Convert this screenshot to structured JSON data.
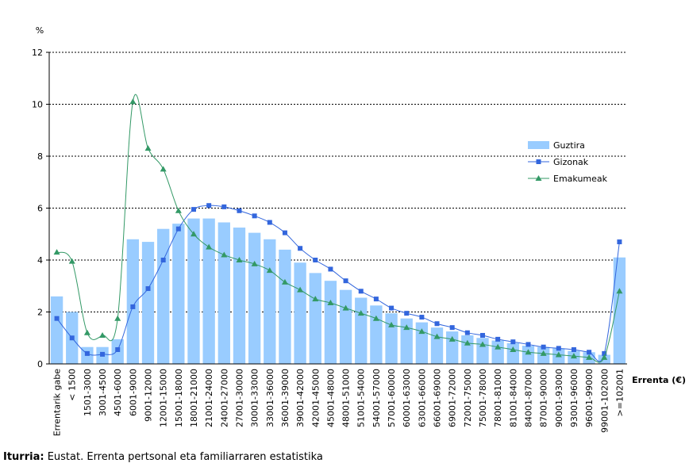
{
  "chart_data": {
    "type": "bar-line",
    "y_label": "%",
    "x_label": "Errenta (€)",
    "source_label": "Iturria:",
    "source": "Eustat. Errenta pertsonal eta familiarraren estatistika",
    "categories": [
      "Errentarik gabe",
      "< 1500",
      "1501-3000",
      "3001-4500",
      "4501-6000",
      "6001-9000",
      "9001-12000",
      "12001-15000",
      "15001-18000",
      "18001-21000",
      "21001-24000",
      "24001-27000",
      "27001-30000",
      "30001-33000",
      "33001-36000",
      "36001-39000",
      "39001-42000",
      "42001-45000",
      "45001-48000",
      "48001-51000",
      "51001-54000",
      "54001-57000",
      "57001-60000",
      "60001-63000",
      "63001-66000",
      "66001-69000",
      "69001-72000",
      "72001-75000",
      "75001-78000",
      "78001-81000",
      "81001-84000",
      "84001-87000",
      "87001-90000",
      "90001-93000",
      "93001-96000",
      "96001-99000",
      "99001-102000",
      ">=102001"
    ],
    "series": [
      {
        "name": "Guztira",
        "kind": "bar",
        "color": "#99ccff",
        "values": [
          2.6,
          2.0,
          0.65,
          0.65,
          0.95,
          4.8,
          4.7,
          5.2,
          5.4,
          5.6,
          5.6,
          5.45,
          5.25,
          5.05,
          4.8,
          4.4,
          3.9,
          3.5,
          3.2,
          2.85,
          2.55,
          2.25,
          1.95,
          1.75,
          1.6,
          1.4,
          1.25,
          1.1,
          1.0,
          0.9,
          0.8,
          0.7,
          0.65,
          0.6,
          0.5,
          0.45,
          0.35,
          4.1
        ]
      },
      {
        "name": "Gizonak",
        "kind": "line",
        "marker": "square",
        "color": "#3366dd",
        "values": [
          1.75,
          1.0,
          0.4,
          0.37,
          0.55,
          2.2,
          2.9,
          4.0,
          5.2,
          5.95,
          6.1,
          6.05,
          5.9,
          5.7,
          5.45,
          5.05,
          4.45,
          4.0,
          3.65,
          3.2,
          2.8,
          2.5,
          2.15,
          1.95,
          1.8,
          1.55,
          1.4,
          1.2,
          1.1,
          0.95,
          0.85,
          0.75,
          0.65,
          0.6,
          0.55,
          0.45,
          0.4,
          4.7
        ]
      },
      {
        "name": "Emakumeak",
        "kind": "line",
        "marker": "triangle",
        "color": "#339966",
        "values": [
          4.3,
          3.95,
          1.2,
          1.1,
          1.75,
          10.1,
          8.3,
          7.5,
          5.9,
          5.0,
          4.5,
          4.2,
          4.0,
          3.85,
          3.6,
          3.15,
          2.85,
          2.5,
          2.35,
          2.15,
          1.95,
          1.75,
          1.5,
          1.4,
          1.25,
          1.05,
          0.95,
          0.8,
          0.75,
          0.65,
          0.55,
          0.45,
          0.4,
          0.35,
          0.3,
          0.25,
          0.25,
          2.8
        ]
      }
    ],
    "ylim": [
      0,
      12
    ],
    "yticks": [
      0,
      2,
      4,
      6,
      8,
      10,
      12
    ],
    "grid": true,
    "legend": "right"
  }
}
